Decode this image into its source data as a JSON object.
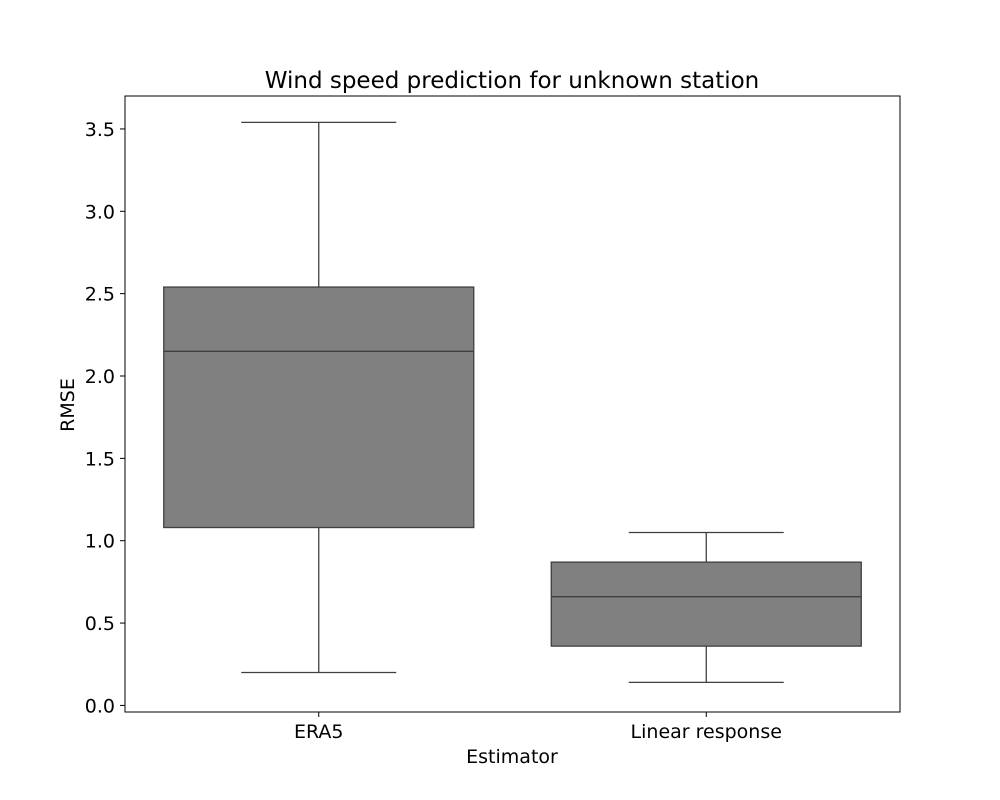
{
  "chart_data": {
    "type": "box",
    "title": "Wind speed prediction for unknown station",
    "xlabel": "Estimator",
    "ylabel": "RMSE",
    "ylim": [
      -0.04,
      3.7
    ],
    "yticks": [
      0.0,
      0.5,
      1.0,
      1.5,
      2.0,
      2.5,
      3.0,
      3.5
    ],
    "ytick_labels": [
      "0.0",
      "0.5",
      "1.0",
      "1.5",
      "2.0",
      "2.5",
      "3.0",
      "3.5"
    ],
    "categories": [
      "ERA5",
      "Linear response"
    ],
    "boxes": [
      {
        "category": "ERA5",
        "whisker_low": 0.2,
        "q1": 1.08,
        "median": 2.15,
        "q3": 2.54,
        "whisker_high": 3.54
      },
      {
        "category": "Linear response",
        "whisker_low": 0.14,
        "q1": 0.36,
        "median": 0.66,
        "q3": 0.87,
        "whisker_high": 1.05
      }
    ],
    "grid": false,
    "colors": {
      "box_fill": "#808080",
      "box_edge": "#3f3f3f"
    }
  }
}
